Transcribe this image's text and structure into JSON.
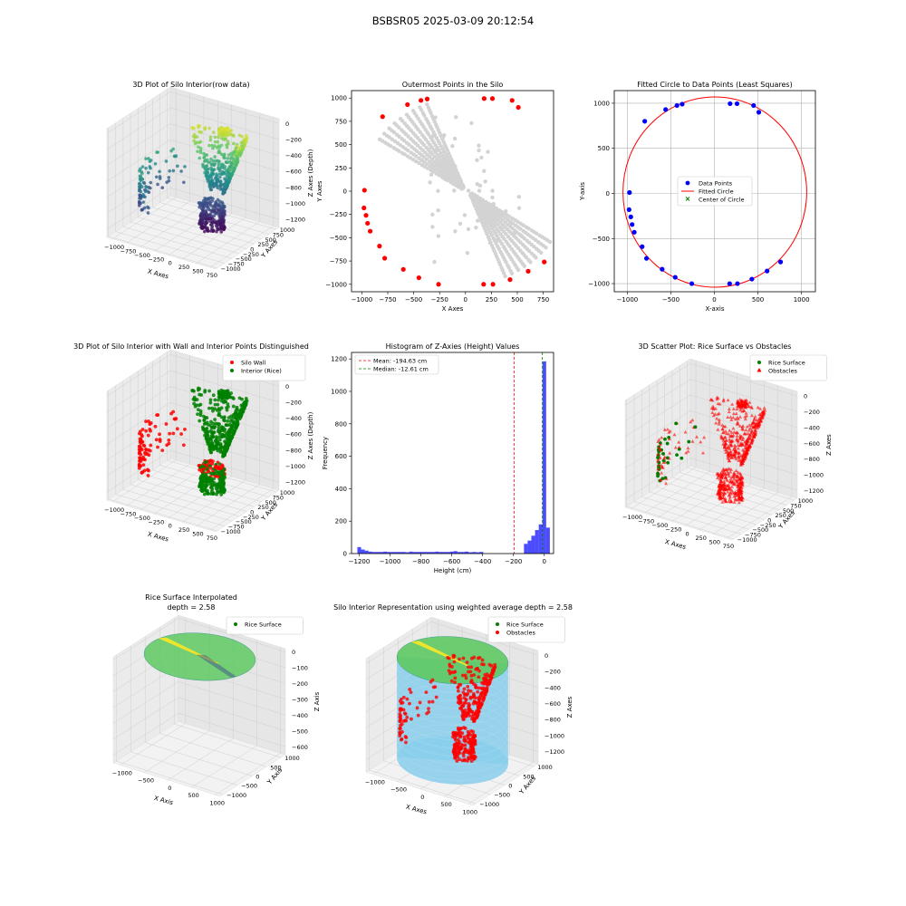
{
  "figure": {
    "suptitle": "BSBSR05 2025-03-09 20:12:54"
  },
  "chart_data": [
    {
      "id": "p1",
      "type": "scatter3d",
      "title": "3D Plot of Silo Interior(row data)",
      "xlabel": "X Axes",
      "ylabel": "Y Axes",
      "zlabel": "Z Axes (Depth)",
      "xticks": [
        "−1000",
        "−750",
        "−500",
        "−250",
        "0",
        "250",
        "500",
        "750"
      ],
      "yticks": [
        "1000",
        "750",
        "500",
        "250",
        "0",
        "−250",
        "−500",
        "−750",
        "−1000"
      ],
      "zticks": [
        "0",
        "−200",
        "−400",
        "−600",
        "−800",
        "−1000",
        "−1200"
      ],
      "colormap": "viridis"
    },
    {
      "id": "p2",
      "type": "scatter",
      "title": "Outermost Points in the Silo",
      "xlabel": "X Axes",
      "ylabel": "Y Axes",
      "xticks": [
        "−1000",
        "−750",
        "−500",
        "−250",
        "0",
        "250",
        "500",
        "750"
      ],
      "yticks": [
        "1000",
        "750",
        "500",
        "250",
        "0",
        "−250",
        "−500",
        "−750",
        "−1000"
      ],
      "xlim": [
        -1100,
        850
      ],
      "ylim": [
        -1080,
        1080
      ],
      "series": [
        {
          "color": "#d3d3d3",
          "pattern": "fan"
        },
        {
          "color": "#ff0000",
          "points": [
            [
              -980,
              -180
            ],
            [
              -975,
              10
            ],
            [
              -960,
              -260
            ],
            [
              -945,
              -345
            ],
            [
              -920,
              -430
            ],
            [
              -830,
              -590
            ],
            [
              -780,
              -720
            ],
            [
              -600,
              -840
            ],
            [
              -450,
              -930
            ],
            [
              -260,
              -1000
            ],
            [
              175,
              -1000
            ],
            [
              265,
              -1000
            ],
            [
              430,
              -950
            ],
            [
              605,
              -860
            ],
            [
              760,
              -760
            ],
            [
              -800,
              800
            ],
            [
              -560,
              930
            ],
            [
              -430,
              975
            ],
            [
              -370,
              990
            ],
            [
              180,
              995
            ],
            [
              260,
              995
            ],
            [
              450,
              975
            ],
            [
              510,
              900
            ]
          ]
        }
      ]
    },
    {
      "id": "p3",
      "type": "scatter",
      "title": "Fitted Circle to Data Points (Least Squares)",
      "xlabel": "X-axis",
      "ylabel": "Y-axis",
      "xticks": [
        "−1000",
        "−500",
        "0",
        "500",
        "1000"
      ],
      "yticks": [
        "1000",
        "500",
        "0",
        "−500",
        "−1000"
      ],
      "xlim": [
        -1150,
        1160
      ],
      "ylim": [
        -1090,
        1140
      ],
      "grid": true,
      "legend_position": "center",
      "legend": [
        "Data Points",
        "Fitted Circle",
        "Center of Circle"
      ],
      "circle": {
        "cx": 5,
        "cy": 15,
        "r": 1055
      },
      "points": [
        [
          -980,
          -180
        ],
        [
          -975,
          10
        ],
        [
          -960,
          -260
        ],
        [
          -945,
          -345
        ],
        [
          -920,
          -430
        ],
        [
          -830,
          -590
        ],
        [
          -780,
          -720
        ],
        [
          -600,
          -840
        ],
        [
          -450,
          -930
        ],
        [
          -260,
          -1000
        ],
        [
          175,
          -1000
        ],
        [
          265,
          -1000
        ],
        [
          430,
          -950
        ],
        [
          605,
          -860
        ],
        [
          760,
          -760
        ],
        [
          -800,
          800
        ],
        [
          -560,
          930
        ],
        [
          -430,
          975
        ],
        [
          -370,
          990
        ],
        [
          180,
          995
        ],
        [
          260,
          995
        ],
        [
          450,
          975
        ],
        [
          510,
          900
        ]
      ]
    },
    {
      "id": "p4",
      "type": "scatter3d",
      "title": "3D Plot of Silo Interior with Wall and Interior Points Distinguished",
      "xlabel": "X Axes",
      "ylabel": "Y Axes",
      "zlabel": "Z Axes (Depth)",
      "xticks": [
        "−1000",
        "−750",
        "−500",
        "−250",
        "0",
        "250",
        "500",
        "750"
      ],
      "yticks": [
        "1000",
        "750",
        "500",
        "250",
        "0",
        "−250",
        "−500",
        "−750",
        "−1000"
      ],
      "zticks": [
        "0",
        "−200",
        "−400",
        "−600",
        "−800",
        "−1000",
        "−1200"
      ],
      "legend": [
        "Silo Wall",
        "Interior (Rice)"
      ],
      "legend_position": "upper right"
    },
    {
      "id": "p5",
      "type": "histogram",
      "title": "Histogram of Z-Axies (Height) Values",
      "xlabel": "Height (cm)",
      "ylabel": "Frequency",
      "xticks": [
        "−1200",
        "−1000",
        "−800",
        "−600",
        "−400",
        "−200",
        "0"
      ],
      "yticks": [
        "0",
        "200",
        "400",
        "600",
        "800",
        "1000",
        "1200"
      ],
      "xlim": [
        -1250,
        60
      ],
      "ylim": [
        0,
        1240
      ],
      "legend": [
        "Mean: -194.63 cm",
        "Median: -12.61 cm"
      ],
      "mean": -194.63,
      "median": -12.61,
      "bin_width": 24,
      "bins": [
        [
          -1212,
          40
        ],
        [
          -1188,
          25
        ],
        [
          -1164,
          18
        ],
        [
          -1140,
          12
        ],
        [
          -1116,
          10
        ],
        [
          -1092,
          10
        ],
        [
          -1068,
          10
        ],
        [
          -1044,
          12
        ],
        [
          -1020,
          10
        ],
        [
          -996,
          10
        ],
        [
          -972,
          10
        ],
        [
          -948,
          10
        ],
        [
          -924,
          10
        ],
        [
          -900,
          8
        ],
        [
          -876,
          12
        ],
        [
          -852,
          10
        ],
        [
          -828,
          10
        ],
        [
          -804,
          10
        ],
        [
          -780,
          10
        ],
        [
          -756,
          10
        ],
        [
          -732,
          10
        ],
        [
          -708,
          12
        ],
        [
          -684,
          10
        ],
        [
          -660,
          10
        ],
        [
          -636,
          10
        ],
        [
          -612,
          12
        ],
        [
          -588,
          15
        ],
        [
          -564,
          10
        ],
        [
          -540,
          10
        ],
        [
          -516,
          12
        ],
        [
          -492,
          8
        ],
        [
          -468,
          10
        ],
        [
          -444,
          8
        ],
        [
          -420,
          10
        ],
        [
          -132,
          60
        ],
        [
          -108,
          80
        ],
        [
          -84,
          110
        ],
        [
          -60,
          145
        ],
        [
          -36,
          180
        ],
        [
          -12,
          1185
        ],
        [
          12,
          160
        ]
      ]
    },
    {
      "id": "p6",
      "type": "scatter3d",
      "title": "3D Scatter Plot: Rice Surface vs Obstacles",
      "xlabel": "X Axes",
      "ylabel": "Y Axes",
      "zlabel": "Z Axes",
      "xticks": [
        "−1000",
        "−750",
        "−500",
        "−250",
        "0",
        "250",
        "500",
        "750"
      ],
      "yticks": [
        "1000",
        "750",
        "500",
        "250",
        "0",
        "−250",
        "−500",
        "−750",
        "−1000"
      ],
      "zticks": [
        "0",
        "−200",
        "−400",
        "−600",
        "−800",
        "−1000",
        "−1200"
      ],
      "legend": [
        "Rice Surface",
        "Obstacles"
      ],
      "legend_position": "upper right"
    },
    {
      "id": "p7",
      "type": "surface3d",
      "title": "Rice Surface Interpolated",
      "subtitle": "depth = 2.58",
      "xlabel": "X Axis",
      "ylabel": "Y Axis",
      "zlabel": "Z Axis",
      "xticks": [
        "−1000",
        "−500",
        "0",
        "500",
        "1000"
      ],
      "yticks": [
        "1000",
        "500",
        "0",
        "−500",
        "−1000"
      ],
      "zticks": [
        "0",
        "−100",
        "−200",
        "−300",
        "−400",
        "−500",
        "−600"
      ],
      "legend": [
        "Rice Surface"
      ],
      "legend_position": "upper right"
    },
    {
      "id": "p8",
      "type": "surface3d",
      "title": "Silo Interior Representation using weighted average depth = 2.58",
      "xlabel": "X Axes",
      "ylabel": "Y Axes",
      "zlabel": "Z Axes",
      "xticks": [
        "−1000",
        "−500",
        "0",
        "500",
        "1000"
      ],
      "yticks": [
        "1000",
        "500",
        "0",
        "−500",
        "−1000"
      ],
      "zticks": [
        "0",
        "−200",
        "−400",
        "−600",
        "−800",
        "−1000",
        "−1200"
      ],
      "legend": [
        "Rice Surface",
        "Obstacles"
      ],
      "legend_position": "upper center",
      "cylinder_color": "#87ceeb"
    }
  ]
}
